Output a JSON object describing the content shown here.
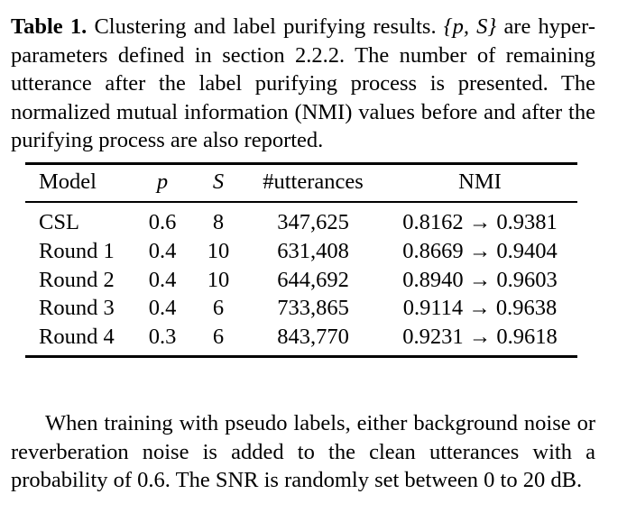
{
  "caption": {
    "label": "Table 1",
    "sep": ".",
    "text_part1": " Clustering and label purifying results. ",
    "math": "{p, S}",
    "text_part2": " are hyper-parameters defined in section 2.2.2. The number of remaining utterance after the label purifying process is presented. The normalized mutual information (NMI) values before and after the purifying process are also reported."
  },
  "table": {
    "headers": {
      "model": "Model",
      "p": "p",
      "s": "S",
      "utterances": "#utterances",
      "nmi": "NMI"
    },
    "rows": [
      {
        "model": "CSL",
        "p": "0.6",
        "s": "8",
        "utterances": "347,625",
        "nmi": "0.8162 → 0.9381"
      },
      {
        "model": "Round 1",
        "p": "0.4",
        "s": "10",
        "utterances": "631,408",
        "nmi": "0.8669 → 0.9404"
      },
      {
        "model": "Round 2",
        "p": "0.4",
        "s": "10",
        "utterances": "644,692",
        "nmi": "0.8940 → 0.9603"
      },
      {
        "model": "Round 3",
        "p": "0.4",
        "s": "6",
        "utterances": "733,865",
        "nmi": "0.9114 → 0.9638"
      },
      {
        "model": "Round 4",
        "p": "0.3",
        "s": "6",
        "utterances": "843,770",
        "nmi": "0.9231 → 0.9618"
      }
    ]
  },
  "body": {
    "paragraph": "When training with pseudo labels, either background noise or reverberation noise is added to the clean utterances with a probability of 0.6. The SNR is randomly set between 0 to 20 dB."
  }
}
